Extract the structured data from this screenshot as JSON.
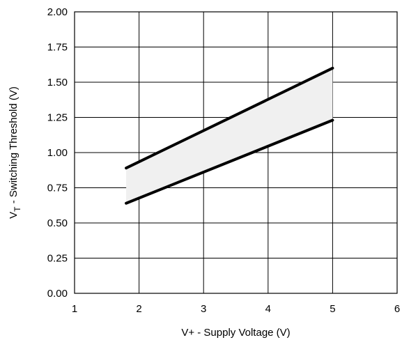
{
  "chart_data": {
    "type": "area",
    "xlabel": "V+ -  Supply Voltage (V)",
    "ylabel": {
      "symbol": "V",
      "subscript": "T",
      "text": "  -  Switching Threshold (V)"
    },
    "xlim": [
      1,
      6
    ],
    "ylim": [
      0,
      2
    ],
    "x_ticks": [
      1,
      2,
      3,
      4,
      5,
      6
    ],
    "y_ticks": [
      0.0,
      0.25,
      0.5,
      0.75,
      1.0,
      1.25,
      1.5,
      1.75,
      2.0
    ],
    "x_tick_labels": [
      "1",
      "2",
      "3",
      "4",
      "5",
      "6"
    ],
    "y_tick_labels": [
      "0.00",
      "0.25",
      "0.50",
      "0.75",
      "1.00",
      "1.25",
      "1.50",
      "1.75",
      "2.00"
    ],
    "grid": true,
    "series": [
      {
        "x": [
          1.8,
          5.0
        ],
        "values": [
          0.89,
          1.6
        ]
      },
      {
        "x": [
          1.8,
          5.0
        ],
        "values": [
          0.64,
          1.23
        ]
      }
    ],
    "fill_between": {
      "x": [
        1.8,
        5.0
      ],
      "upper": [
        0.89,
        1.6
      ],
      "lower": [
        0.64,
        1.23
      ],
      "color": "#f0f0f0"
    },
    "line_color": "#000000"
  }
}
